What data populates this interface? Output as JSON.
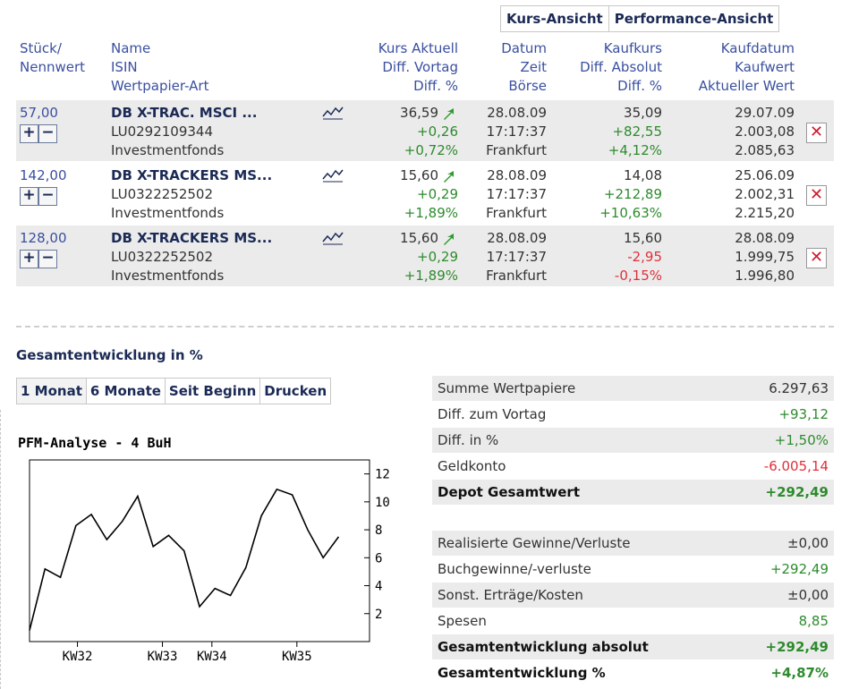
{
  "view_tabs": [
    "Kurs-Ansicht",
    "Performance-Ansicht"
  ],
  "headers": {
    "qty": [
      "Stück/",
      "Nennwert"
    ],
    "name": [
      "Name",
      "ISIN",
      "Wertpapier-Art"
    ],
    "kurs": [
      "Kurs Aktuell",
      "Diff. Vortag",
      "Diff. %"
    ],
    "datum": [
      "Datum",
      "Zeit",
      "Börse"
    ],
    "kaufkurs": [
      "Kaufkurs",
      "Diff. Absolut",
      "Diff. %"
    ],
    "kaufdatum": [
      "Kaufdatum",
      "Kaufwert",
      "Aktueller Wert"
    ]
  },
  "holdings": [
    {
      "qty": "57,00",
      "name": "DB X-TRAC. MSCI ...",
      "isin": "LU0292109344",
      "type": "Investmentfonds",
      "kurs": "36,59",
      "diff_vortag": "+0,26",
      "diff_pct": "+0,72%",
      "datum": "28.08.09",
      "zeit": "17:17:37",
      "boerse": "Frankfurt",
      "kaufkurs": "35,09",
      "diff_abs": "+82,55",
      "diff_abs_pct": "+4,12%",
      "kaufdatum": "29.07.09",
      "kaufwert": "2.003,08",
      "aktueller_wert": "2.085,63"
    },
    {
      "qty": "142,00",
      "name": "DB X-TRACKERS MS...",
      "isin": "LU0322252502",
      "type": "Investmentfonds",
      "kurs": "15,60",
      "diff_vortag": "+0,29",
      "diff_pct": "+1,89%",
      "datum": "28.08.09",
      "zeit": "17:17:37",
      "boerse": "Frankfurt",
      "kaufkurs": "14,08",
      "diff_abs": "+212,89",
      "diff_abs_pct": "+10,63%",
      "kaufdatum": "25.06.09",
      "kaufwert": "2.002,31",
      "aktueller_wert": "2.215,20"
    },
    {
      "qty": "128,00",
      "name": "DB X-TRACKERS MS...",
      "isin": "LU0322252502",
      "type": "Investmentfonds",
      "kurs": "15,60",
      "diff_vortag": "+0,29",
      "diff_pct": "+1,89%",
      "datum": "28.08.09",
      "zeit": "17:17:37",
      "boerse": "Frankfurt",
      "kaufkurs": "15,60",
      "diff_abs": "-2,95",
      "diff_abs_pct": "-0,15%",
      "kaufdatum": "28.08.09",
      "kaufwert": "1.999,75",
      "aktueller_wert": "1.996,80"
    }
  ],
  "controls": {
    "plus": "+",
    "minus": "−",
    "delete": "✕"
  },
  "section_title": "Gesamtentwicklung in %",
  "period_tabs": [
    "1 Monat",
    "6 Monate",
    "Seit Beginn",
    "Drucken"
  ],
  "summary": [
    {
      "label": "Summe Wertpapiere",
      "value": "6.297,63",
      "color": "normal",
      "bold": false
    },
    {
      "label": "Diff. zum Vortag",
      "value": "+93,12",
      "color": "green",
      "bold": false
    },
    {
      "label": "Diff. in %",
      "value": "+1,50%",
      "color": "green",
      "bold": false
    },
    {
      "label": "Geldkonto",
      "value": "-6.005,14",
      "color": "red",
      "bold": false
    },
    {
      "label": "Depot Gesamtwert",
      "value": "+292,49",
      "color": "green",
      "bold": true
    }
  ],
  "summary2": [
    {
      "label": "Realisierte Gewinne/Verluste",
      "value": "±0,00",
      "color": "normal",
      "bold": false
    },
    {
      "label": "Buchgewinne/-verluste",
      "value": "+292,49",
      "color": "green",
      "bold": false
    },
    {
      "label": "Sonst. Erträge/Kosten",
      "value": "±0,00",
      "color": "normal",
      "bold": false
    },
    {
      "label": "Spesen",
      "value": "8,85",
      "color": "green",
      "bold": false
    },
    {
      "label": "Gesamtentwicklung absolut",
      "value": "+292,49",
      "color": "green",
      "bold": true
    },
    {
      "label": "Gesamtentwicklung %",
      "value": "+4,87%",
      "color": "green",
      "bold": true
    }
  ],
  "colors": {
    "green": "#2e8b2e",
    "red": "#e0303a",
    "header_blue": "#3a4fa0",
    "name_navy": "#1b2a55",
    "shade": "#ebebeb"
  },
  "icons": {
    "chart": "line-chart-icon",
    "trend": "trend-up-arrow-icon",
    "delete": "delete-x-icon"
  },
  "chart_data": {
    "type": "line",
    "title": "PFM-Analyse - 4 BuH",
    "ylim": [
      0,
      13
    ],
    "yticks": [
      2,
      4,
      6,
      8,
      10,
      12
    ],
    "xlim": [
      0,
      22
    ],
    "xticks": [
      {
        "x": 3.1,
        "label": "KW32"
      },
      {
        "x": 8.6,
        "label": "KW33"
      },
      {
        "x": 11.8,
        "label": "KW34"
      },
      {
        "x": 17.3,
        "label": "KW35"
      }
    ],
    "series": [
      {
        "values": [
          0.8,
          5.2,
          4.6,
          8.3,
          9.1,
          7.3,
          8.6,
          10.4,
          6.8,
          7.6,
          6.5,
          2.5,
          3.8,
          3.3,
          5.3,
          9.0,
          10.9,
          10.5,
          8.0,
          6.0,
          7.5
        ]
      }
    ]
  }
}
